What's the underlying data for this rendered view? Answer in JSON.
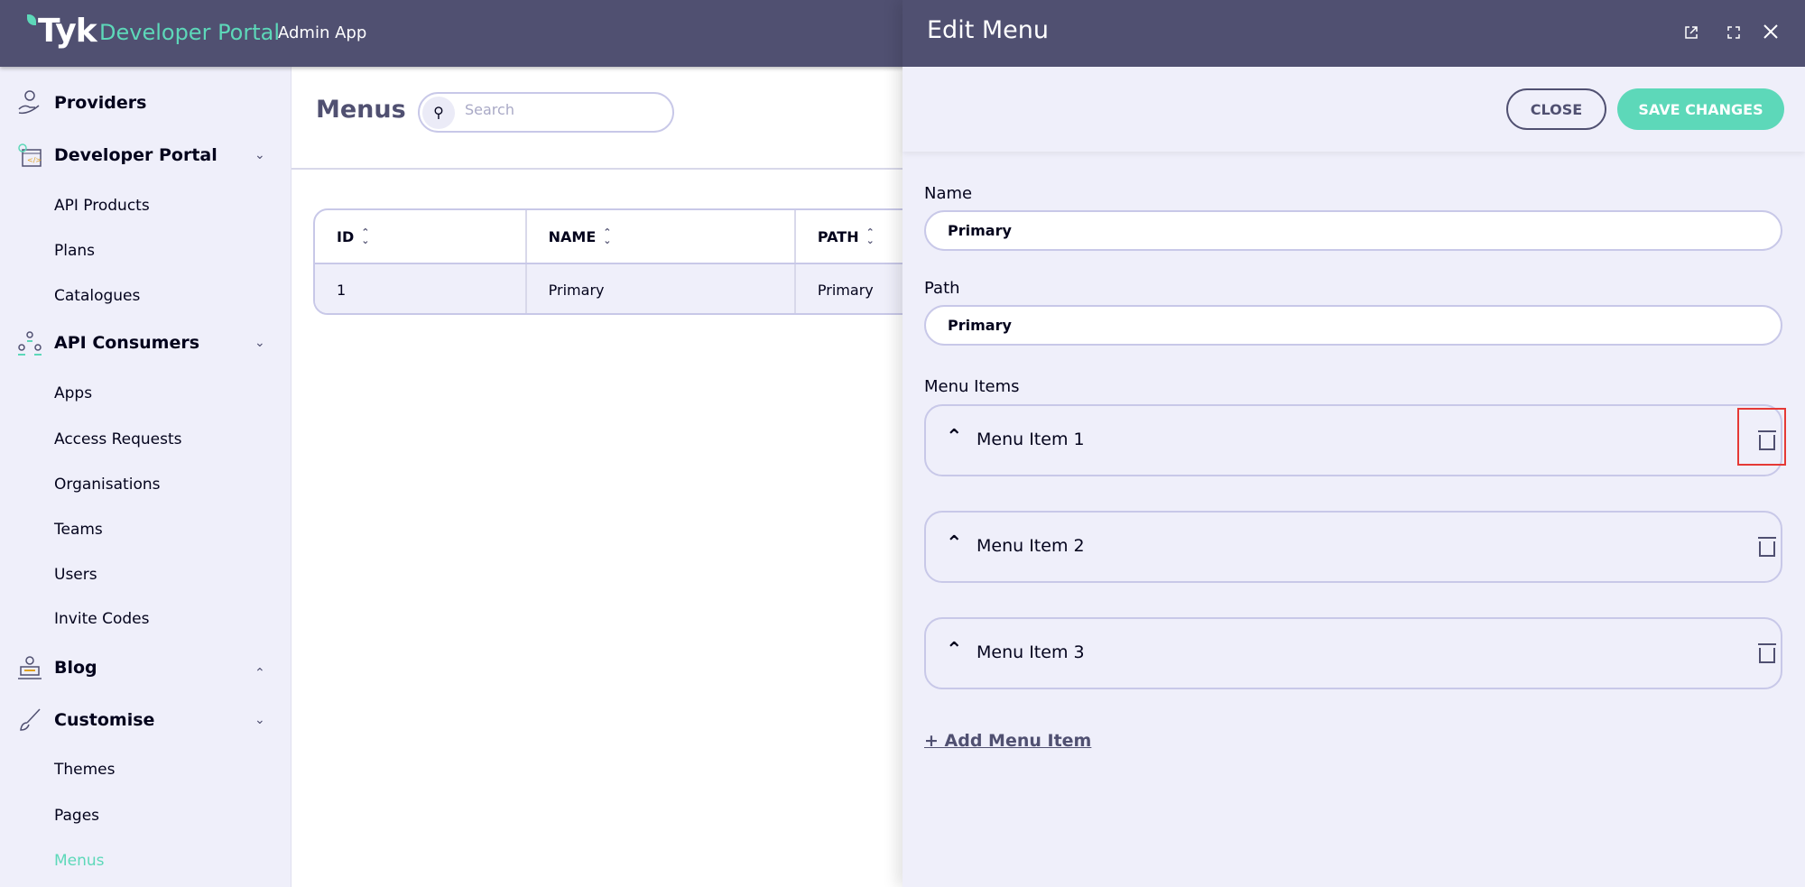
{
  "header": {
    "logo": "Tyk",
    "product": "Developer Portal",
    "app": "Admin App"
  },
  "sidebar": {
    "sections": [
      {
        "label": "Providers",
        "icon": "providers-icon"
      },
      {
        "label": "Developer Portal",
        "icon": "developer-portal-icon",
        "items": [
          "API Products",
          "Plans",
          "Catalogues"
        ]
      },
      {
        "label": "API Consumers",
        "icon": "api-consumers-icon",
        "items": [
          "Apps",
          "Access Requests",
          "Organisations",
          "Teams",
          "Users",
          "Invite Codes"
        ]
      },
      {
        "label": "Blog",
        "icon": "blog-icon"
      },
      {
        "label": "Customise",
        "icon": "customise-icon",
        "items": [
          "Themes",
          "Pages",
          "Menus"
        ]
      }
    ],
    "active": "Menus"
  },
  "main": {
    "title": "Menus",
    "search_placeholder": "Search",
    "table": {
      "columns": [
        "ID",
        "NAME",
        "PATH"
      ],
      "rows": [
        [
          "1",
          "Primary",
          "Primary"
        ]
      ]
    }
  },
  "panel": {
    "title": "Edit Menu",
    "close_label": "CLOSE",
    "save_label": "SAVE CHANGES",
    "name_label": "Name",
    "name_value": "Primary",
    "path_label": "Path",
    "path_value": "Primary",
    "menu_items_label": "Menu Items",
    "menu_items": [
      "Menu Item 1",
      "Menu Item 2",
      "Menu Item 3"
    ],
    "add_label": "+ Add Menu Item"
  },
  "colors": {
    "header": "#505071",
    "accent": "#5dd8b9",
    "background": "#efeffa",
    "highlight": "#e53935"
  }
}
